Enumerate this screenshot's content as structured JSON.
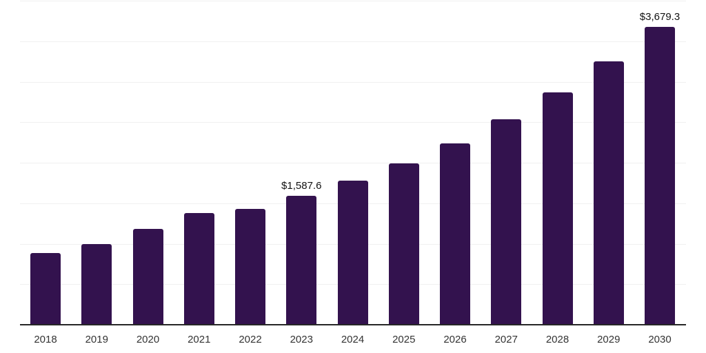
{
  "chart": {
    "background_color": "#ffffff",
    "bar_color": "#33124e",
    "grid_color": "#f0f0f0",
    "axis_line_color": "#262626",
    "tick_label_color": "#333333",
    "data_label_color": "#111111"
  },
  "chart_data": {
    "type": "bar",
    "title": "",
    "xlabel": "",
    "ylabel": "",
    "categories": [
      "2018",
      "2019",
      "2020",
      "2021",
      "2022",
      "2023",
      "2024",
      "2025",
      "2026",
      "2027",
      "2028",
      "2029",
      "2030"
    ],
    "values": [
      885,
      995,
      1180,
      1378,
      1433,
      1587.6,
      1780,
      1990,
      2240,
      2540,
      2870,
      3255,
      3679.3
    ],
    "annotations": [
      {
        "category_index": 5,
        "text": "$1,587.6"
      },
      {
        "category_index": 12,
        "text": "$3,679.3"
      }
    ],
    "ylim": [
      0,
      4000
    ],
    "grid_interval": 500,
    "grid": "horizontal",
    "legend": "none",
    "y_axis_labels_visible": false
  }
}
